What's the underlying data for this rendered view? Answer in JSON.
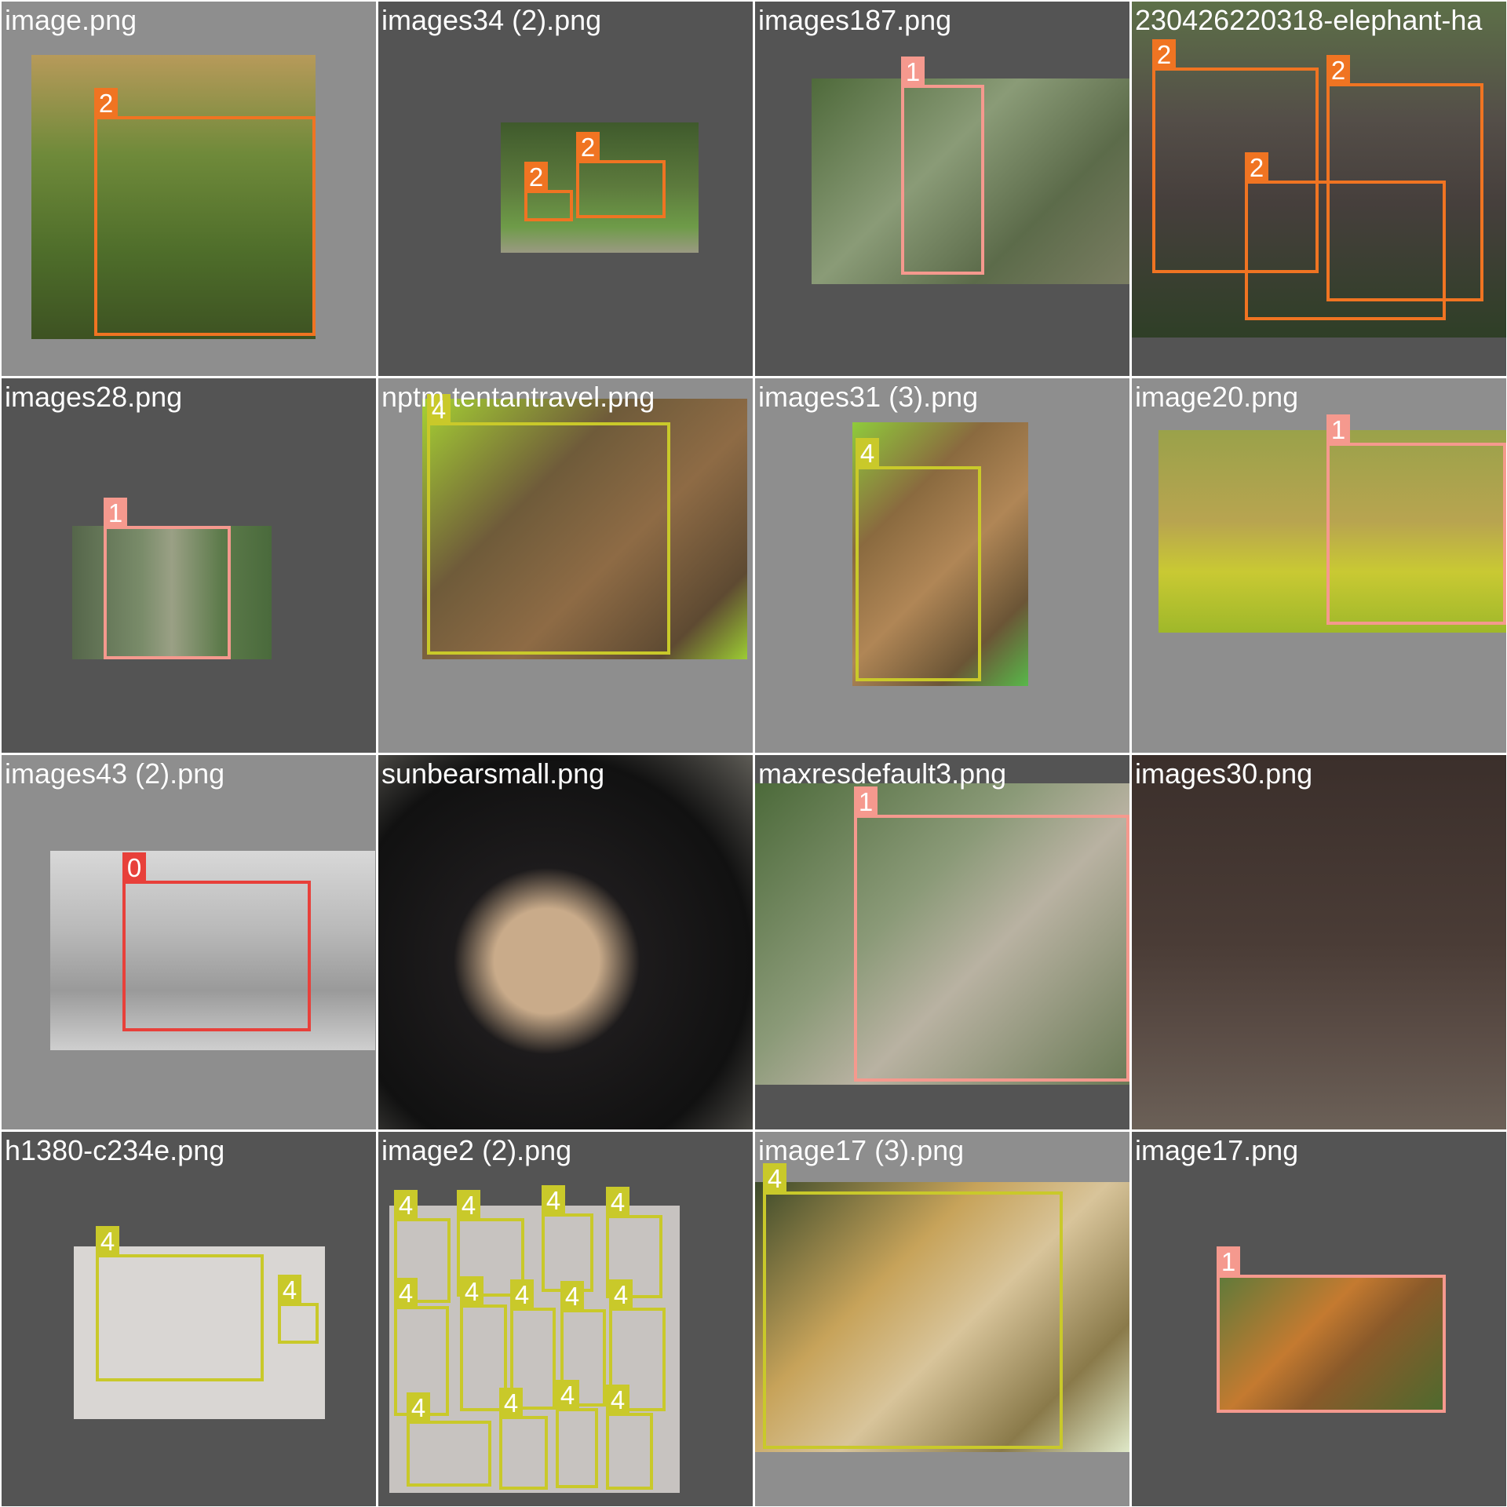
{
  "colors": {
    "class_0": "#e8403a",
    "class_1": "#f5998e",
    "class_2": "#f07422",
    "class_4": "#c9c92a",
    "tile_light": "#8e8e8e",
    "tile_dark": "#545454"
  },
  "tiles": [
    {
      "filename": "image.png",
      "boxes": [
        {
          "label": "2"
        }
      ]
    },
    {
      "filename": "images34 (2).png",
      "boxes": [
        {
          "label": "2"
        },
        {
          "label": "2"
        }
      ]
    },
    {
      "filename": "images187.png",
      "boxes": [
        {
          "label": "1"
        }
      ]
    },
    {
      "filename": "230426220318-elephant-ha",
      "boxes": [
        {
          "label": "2"
        },
        {
          "label": "2"
        },
        {
          "label": "2"
        }
      ]
    },
    {
      "filename": "images28.png",
      "boxes": [
        {
          "label": "1"
        }
      ]
    },
    {
      "filename": "nptm tentantravel.png",
      "boxes": [
        {
          "label": "4"
        }
      ]
    },
    {
      "filename": "images31 (3).png",
      "boxes": [
        {
          "label": "4"
        }
      ]
    },
    {
      "filename": "image20.png",
      "boxes": [
        {
          "label": "1"
        }
      ]
    },
    {
      "filename": "images43 (2).png",
      "boxes": [
        {
          "label": "0"
        }
      ]
    },
    {
      "filename": "sunbearsmall.png",
      "boxes": []
    },
    {
      "filename": "maxresdefault3.png",
      "boxes": [
        {
          "label": "1"
        }
      ]
    },
    {
      "filename": "images30.png",
      "boxes": []
    },
    {
      "filename": "h1380-c234e.png",
      "boxes": [
        {
          "label": "4"
        },
        {
          "label": "4"
        }
      ]
    },
    {
      "filename": "image2 (2).png",
      "boxes": [
        {
          "label": "4"
        },
        {
          "label": "4"
        },
        {
          "label": "4"
        },
        {
          "label": "4"
        },
        {
          "label": "4"
        },
        {
          "label": "4"
        },
        {
          "label": "4"
        },
        {
          "label": "4"
        },
        {
          "label": "4"
        },
        {
          "label": "4"
        },
        {
          "label": "4"
        },
        {
          "label": "4"
        },
        {
          "label": "4"
        }
      ]
    },
    {
      "filename": "image17 (3).png",
      "boxes": [
        {
          "label": "4"
        }
      ]
    },
    {
      "filename": "image17.png",
      "boxes": [
        {
          "label": "1"
        }
      ]
    }
  ]
}
